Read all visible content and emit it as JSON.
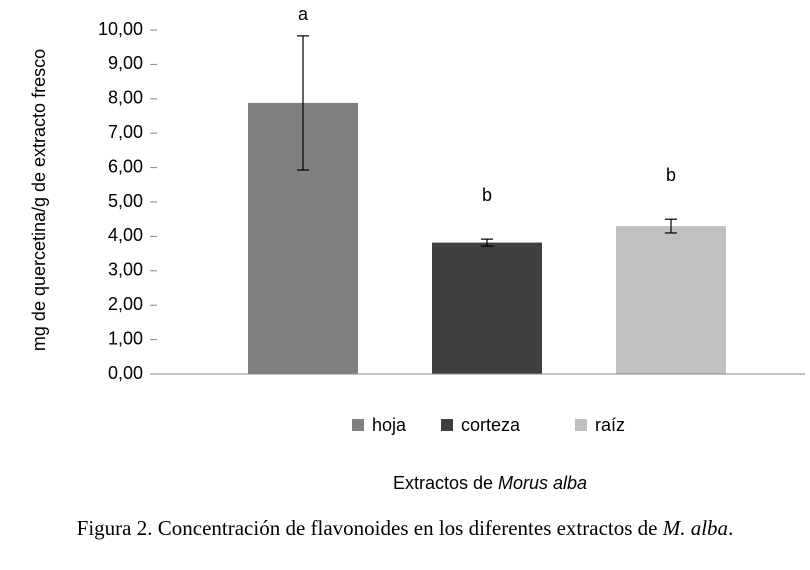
{
  "chart_data": {
    "type": "bar",
    "ylabel": "mg de quercetina/g de extracto fresco",
    "xlabel": {
      "text": "Extractos de ",
      "italic": "Morus alba"
    },
    "caption": {
      "text": "Figura 2. Concentración de flavonoides en los diferentes extractos de ",
      "italic": "M. alba",
      "end": "."
    },
    "categories": [
      null
    ],
    "series": [
      {
        "name": "hoja",
        "color": "#808080",
        "values": [
          7.88
        ],
        "errors": [
          1.95
        ],
        "annotations": [
          "a"
        ]
      },
      {
        "name": "corteza",
        "color": "#404040",
        "values": [
          3.82
        ],
        "errors": [
          0.1
        ],
        "annotations": [
          "b"
        ]
      },
      {
        "name": "raíz",
        "color": "#c0c0c0",
        "values": [
          4.3
        ],
        "errors": [
          0.2
        ],
        "annotations": [
          "b"
        ]
      }
    ],
    "ylim": [
      0,
      10
    ],
    "yticks": [
      {
        "value": 0,
        "label": "0,00"
      },
      {
        "value": 1,
        "label": "1,00"
      },
      {
        "value": 2,
        "label": "2,00"
      },
      {
        "value": 3,
        "label": "3,00"
      },
      {
        "value": 4,
        "label": "4,00"
      },
      {
        "value": 5,
        "label": "5,00"
      },
      {
        "value": 6,
        "label": "6,00"
      },
      {
        "value": 7,
        "label": "7,00"
      },
      {
        "value": 8,
        "label": "8,00"
      },
      {
        "value": 9,
        "label": "9,00"
      },
      {
        "value": 10,
        "label": "10,00"
      }
    ],
    "legend": "bottom",
    "grid": false
  }
}
